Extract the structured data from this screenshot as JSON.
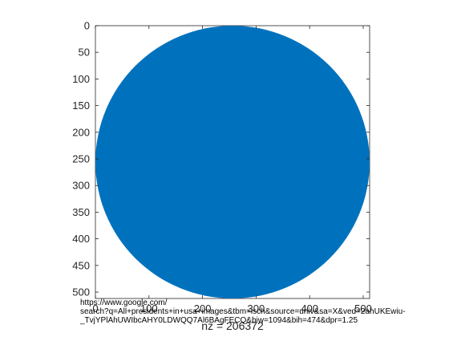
{
  "chart_data": {
    "type": "spy",
    "title": "",
    "xlabel": "nz = 206372",
    "ylabel": "",
    "xlim": [
      0,
      512
    ],
    "ylim": [
      0,
      512
    ],
    "y_reversed": true,
    "grid": false,
    "box": true,
    "marker_color": "#0072BD",
    "nz": 206372,
    "shape": "disk",
    "center": [
      256,
      256
    ],
    "radius": 256,
    "yticks": [
      0,
      50,
      100,
      150,
      200,
      250,
      300,
      350,
      400,
      450,
      500
    ],
    "ytick_labels": [
      "0",
      "50",
      "100",
      "150",
      "200",
      "250",
      "300",
      "350",
      "400",
      "450",
      "500"
    ],
    "xticks": [
      0,
      100,
      200,
      300,
      400,
      500
    ],
    "xtick_labels": [
      "0",
      "100",
      "200",
      "300",
      "400",
      "500"
    ]
  },
  "overlay": {
    "url_lines": [
      "https://www.google.com/",
      "search?q=All+presidents+in+usa+images&tbm=isch&source=univ&sa=X&ved=2ahUKEwiu-",
      "_TvjYPlAhUWIbcAHY0LDWQQ7Al6BAgFECQ&biw=1094&bih=474&dpr=1.25"
    ]
  }
}
